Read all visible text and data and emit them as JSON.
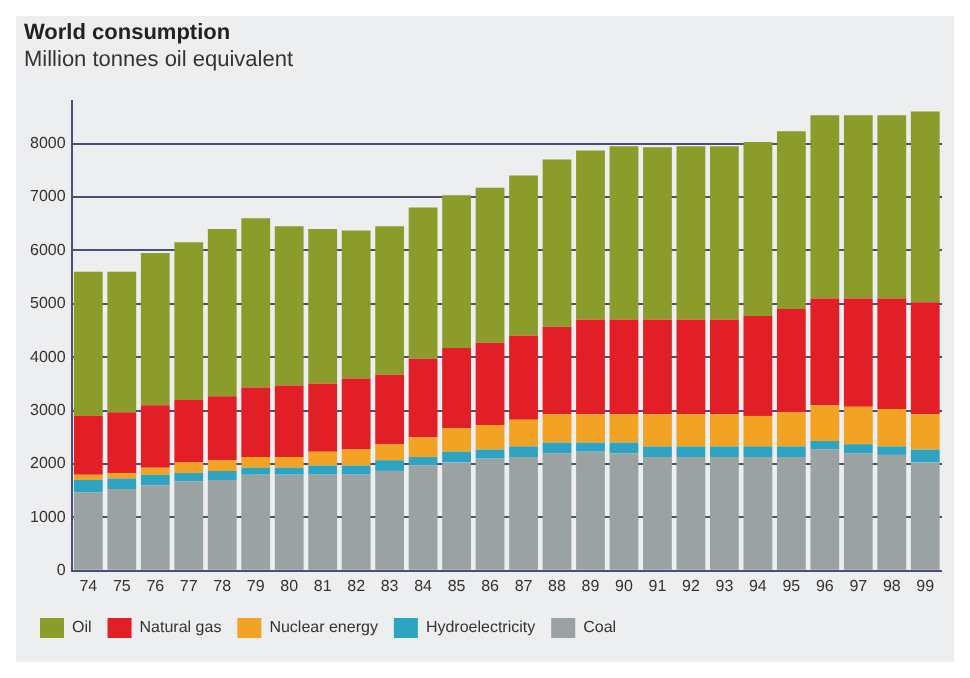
{
  "chart_data": {
    "type": "bar",
    "title": "World consumption",
    "subtitle": "Million tonnes oil equivalent",
    "categories": [
      "74",
      "75",
      "76",
      "77",
      "78",
      "79",
      "80",
      "81",
      "82",
      "83",
      "84",
      "85",
      "86",
      "87",
      "88",
      "89",
      "90",
      "91",
      "92",
      "93",
      "94",
      "95",
      "96",
      "97",
      "98",
      "99"
    ],
    "stacked": true,
    "legend": "bottom",
    "grid": "y",
    "ylim": [
      0,
      8800
    ],
    "yticks": [
      0,
      1000,
      2000,
      3000,
      4000,
      5000,
      6000,
      7000,
      8000
    ],
    "series": [
      {
        "name": "Coal",
        "color": "#9aa2a2",
        "values": [
          1470,
          1530,
          1600,
          1670,
          1700,
          1800,
          1800,
          1800,
          1800,
          1870,
          1970,
          2030,
          2100,
          2130,
          2200,
          2230,
          2200,
          2130,
          2130,
          2130,
          2130,
          2130,
          2270,
          2200,
          2170,
          2030
        ]
      },
      {
        "name": "Hydroelectricity",
        "color": "#2fa3c2",
        "values": [
          230,
          200,
          200,
          160,
          170,
          130,
          130,
          170,
          170,
          200,
          160,
          200,
          170,
          200,
          200,
          170,
          200,
          200,
          200,
          200,
          200,
          200,
          160,
          170,
          160,
          240
        ]
      },
      {
        "name": "Nuclear energy",
        "color": "#f2a323",
        "values": [
          100,
          100,
          130,
          200,
          200,
          200,
          200,
          260,
          300,
          300,
          370,
          440,
          460,
          500,
          530,
          530,
          530,
          600,
          600,
          600,
          570,
          640,
          670,
          700,
          700,
          660
        ]
      },
      {
        "name": "Natural gas",
        "color": "#e21e26",
        "values": [
          1100,
          1140,
          1170,
          1170,
          1200,
          1300,
          1340,
          1270,
          1330,
          1300,
          1470,
          1500,
          1540,
          1570,
          1640,
          1770,
          1770,
          1770,
          1770,
          1770,
          1870,
          1930,
          2000,
          2030,
          2070,
          2100
        ]
      },
      {
        "name": "Oil",
        "color": "#8c9c2a",
        "values": [
          2700,
          2630,
          2850,
          2950,
          3130,
          3170,
          2980,
          2900,
          2770,
          2780,
          2830,
          2860,
          2900,
          3000,
          3130,
          3170,
          3250,
          3230,
          3250,
          3250,
          3260,
          3330,
          3430,
          3430,
          3430,
          3570
        ]
      }
    ]
  }
}
